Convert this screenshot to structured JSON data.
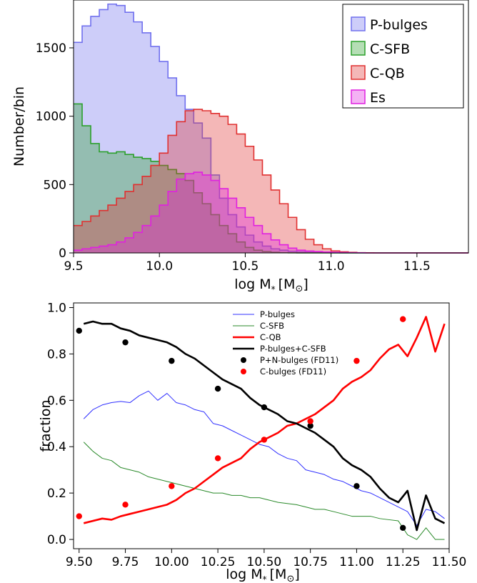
{
  "chart_data": [
    {
      "type": "histogram",
      "xlabel": "log M$_*$ [M$_\\odot$]",
      "xlabel_main": "log M",
      "xlabel_sub": "*",
      "xlabel_unit": "[M",
      "xlabel_sun": "⊙",
      "xlabel_close": "]",
      "ylabel": "Number/bin",
      "xlim": [
        9.5,
        11.8
      ],
      "ylim": [
        0,
        1850
      ],
      "x_ticks": [
        "9.5",
        "10.0",
        "10.5",
        "11.0",
        "11.5"
      ],
      "y_ticks": [
        "0",
        "500",
        "1000",
        "1500"
      ],
      "bin_edges": [
        9.5,
        9.55,
        9.6,
        9.65,
        9.7,
        9.75,
        9.8,
        9.85,
        9.9,
        9.95,
        10.0,
        10.05,
        10.1,
        10.15,
        10.2,
        10.25,
        10.3,
        10.35,
        10.4,
        10.45,
        10.5,
        10.55,
        10.6,
        10.65,
        10.7,
        10.75,
        10.8,
        10.85,
        10.9,
        10.95,
        11.0,
        11.05,
        11.1,
        11.15,
        11.2,
        11.25,
        11.3,
        11.35,
        11.4,
        11.45,
        11.5,
        11.55,
        11.6,
        11.65,
        11.7,
        11.75,
        11.8
      ],
      "legend_position": "top-right",
      "series": [
        {
          "name": "P-bulges",
          "color": "#7070ee",
          "values": [
            1540,
            1660,
            1730,
            1780,
            1820,
            1810,
            1760,
            1690,
            1610,
            1510,
            1400,
            1280,
            1150,
            1050,
            950,
            840,
            570,
            400,
            280,
            190,
            130,
            80,
            50,
            30,
            20,
            12,
            8,
            5,
            3,
            2,
            1,
            0,
            0,
            0,
            0,
            0,
            0,
            0,
            0,
            0,
            0,
            0,
            0,
            0,
            0,
            0
          ]
        },
        {
          "name": "C-SFB",
          "color": "#2ca02c",
          "values": [
            1090,
            930,
            800,
            740,
            730,
            740,
            720,
            700,
            690,
            670,
            640,
            610,
            580,
            530,
            440,
            360,
            280,
            200,
            140,
            80,
            40,
            20,
            10,
            5,
            2,
            1,
            0,
            0,
            0,
            0,
            0,
            0,
            0,
            0,
            0,
            0,
            0,
            0,
            0,
            0,
            0,
            0,
            0,
            0,
            0,
            0
          ]
        },
        {
          "name": "C-QB",
          "color": "#e03030",
          "values": [
            200,
            230,
            270,
            310,
            350,
            400,
            450,
            500,
            560,
            640,
            730,
            860,
            960,
            1040,
            1050,
            1040,
            1020,
            1000,
            940,
            870,
            780,
            680,
            570,
            460,
            360,
            260,
            170,
            100,
            60,
            30,
            15,
            8,
            4,
            2,
            1,
            0,
            0,
            0,
            0,
            0,
            0,
            0,
            0,
            0,
            0,
            0
          ]
        },
        {
          "name": "Es",
          "color": "#e020e0",
          "values": [
            20,
            30,
            40,
            50,
            60,
            80,
            110,
            150,
            200,
            270,
            350,
            450,
            540,
            580,
            590,
            570,
            530,
            470,
            400,
            330,
            260,
            200,
            140,
            95,
            60,
            35,
            20,
            14,
            10,
            7,
            5,
            3,
            2,
            1,
            0,
            0,
            0,
            0,
            0,
            0,
            0,
            0,
            0,
            0,
            0,
            0
          ]
        }
      ]
    },
    {
      "type": "line",
      "xlabel": "log M$_*$ [M$_\\odot$]",
      "xlabel_main": "log M",
      "xlabel_sub": "*",
      "xlabel_unit": "[M",
      "xlabel_sun": "⊙",
      "xlabel_close": "]",
      "ylabel": "fraction",
      "xlim": [
        9.47,
        11.5
      ],
      "ylim": [
        -0.04,
        1.02
      ],
      "x_ticks": [
        "9.50",
        "9.75",
        "10.00",
        "10.25",
        "10.50",
        "10.75",
        "11.00",
        "11.25",
        "11.50"
      ],
      "y_ticks": [
        "0.0",
        "0.2",
        "0.4",
        "0.6",
        "0.8",
        "1.0"
      ],
      "x": [
        9.525,
        9.575,
        9.625,
        9.675,
        9.725,
        9.775,
        9.825,
        9.875,
        9.925,
        9.975,
        10.025,
        10.075,
        10.125,
        10.175,
        10.225,
        10.275,
        10.325,
        10.375,
        10.425,
        10.475,
        10.525,
        10.575,
        10.625,
        10.675,
        10.725,
        10.775,
        10.825,
        10.875,
        10.925,
        10.975,
        11.025,
        11.075,
        11.125,
        11.175,
        11.225,
        11.275,
        11.325,
        11.375,
        11.425,
        11.475
      ],
      "legend_position": "top-center",
      "series": [
        {
          "name": "P-bulges",
          "color": "#3030ff",
          "values": [
            0.52,
            0.56,
            0.58,
            0.59,
            0.595,
            0.59,
            0.62,
            0.64,
            0.6,
            0.63,
            0.59,
            0.58,
            0.56,
            0.55,
            0.5,
            0.49,
            0.47,
            0.45,
            0.43,
            0.41,
            0.4,
            0.37,
            0.35,
            0.34,
            0.3,
            0.29,
            0.28,
            0.26,
            0.25,
            0.23,
            0.21,
            0.2,
            0.18,
            0.16,
            0.14,
            0.12,
            0.06,
            0.13,
            0.12,
            0.09
          ]
        },
        {
          "name": "C-SFB",
          "color": "#2a8a2a",
          "values": [
            0.42,
            0.38,
            0.35,
            0.34,
            0.31,
            0.3,
            0.29,
            0.27,
            0.26,
            0.25,
            0.24,
            0.23,
            0.22,
            0.21,
            0.2,
            0.2,
            0.19,
            0.19,
            0.18,
            0.18,
            0.17,
            0.16,
            0.155,
            0.15,
            0.14,
            0.13,
            0.13,
            0.12,
            0.11,
            0.1,
            0.1,
            0.1,
            0.09,
            0.085,
            0.08,
            0.02,
            0.0,
            0.05,
            0.0,
            0.0
          ]
        },
        {
          "name": "C-QB",
          "color": "#ff0000",
          "values": [
            0.07,
            0.08,
            0.09,
            0.085,
            0.1,
            0.11,
            0.12,
            0.13,
            0.14,
            0.15,
            0.17,
            0.2,
            0.22,
            0.25,
            0.28,
            0.31,
            0.33,
            0.35,
            0.39,
            0.42,
            0.44,
            0.46,
            0.49,
            0.5,
            0.52,
            0.54,
            0.57,
            0.6,
            0.65,
            0.68,
            0.7,
            0.73,
            0.78,
            0.82,
            0.84,
            0.79,
            0.87,
            0.96,
            0.81,
            0.93
          ]
        },
        {
          "name": "P-bulges+C-SFB",
          "color": "#000000",
          "values": [
            0.93,
            0.94,
            0.93,
            0.93,
            0.91,
            0.9,
            0.88,
            0.87,
            0.86,
            0.85,
            0.83,
            0.8,
            0.78,
            0.75,
            0.72,
            0.69,
            0.67,
            0.65,
            0.61,
            0.58,
            0.56,
            0.54,
            0.51,
            0.5,
            0.48,
            0.46,
            0.43,
            0.4,
            0.35,
            0.32,
            0.3,
            0.27,
            0.22,
            0.18,
            0.16,
            0.21,
            0.04,
            0.19,
            0.09,
            0.07
          ]
        }
      ],
      "points": [
        {
          "name": "P+N-bulges (FD11)",
          "color": "#000000",
          "x": [
            9.5,
            9.75,
            10.0,
            10.25,
            10.5,
            10.75,
            11.0,
            11.25
          ],
          "y": [
            0.9,
            0.85,
            0.77,
            0.65,
            0.57,
            0.49,
            0.23,
            0.05
          ]
        },
        {
          "name": "C-bulges (FD11)",
          "color": "#ff0000",
          "x": [
            9.5,
            9.75,
            10.0,
            10.25,
            10.5,
            10.75,
            11.0,
            11.25
          ],
          "y": [
            0.1,
            0.15,
            0.23,
            0.35,
            0.43,
            0.51,
            0.77,
            0.95
          ]
        }
      ]
    }
  ]
}
